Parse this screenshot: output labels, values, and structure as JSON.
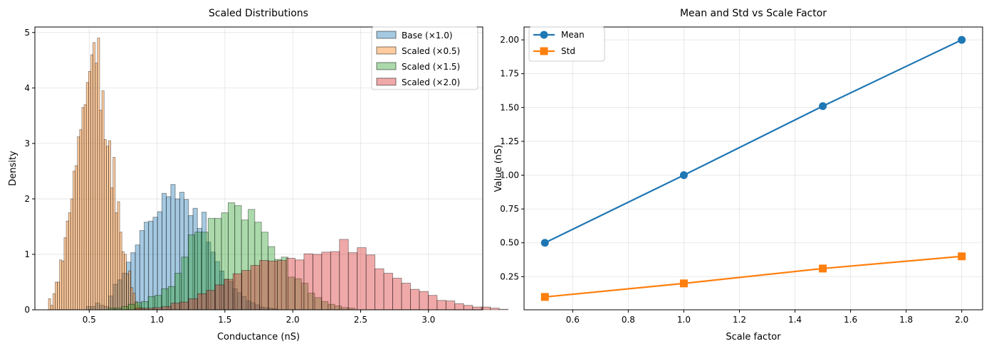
{
  "colors": {
    "c0": "#1f77b4",
    "c1": "#ff7f0e",
    "c2": "#2ca02c",
    "c3": "#d62728",
    "grid": "#b0b0b0",
    "axis": "#000000"
  },
  "chart_data": [
    {
      "type": "bar",
      "title": "Scaled Distributions",
      "xlabel": "Conductance (nS)",
      "ylabel": "Density",
      "xlim": [
        0.1,
        3.4
      ],
      "ylim": [
        0,
        5.1
      ],
      "xticks": [
        "0.5",
        "1.0",
        "1.5",
        "2.0",
        "2.5",
        "3.0"
      ],
      "yticks": [
        "0",
        "1",
        "2",
        "3",
        "4",
        "5"
      ],
      "grid": true,
      "legend_position": "upper right",
      "series": [
        {
          "name": "Base (×1.0)",
          "color_key": "c0",
          "bin_width": 0.0327,
          "x_start": 0.48,
          "values": [
            0.06,
            0.06,
            0.12,
            0.08,
            0.06,
            0.25,
            0.46,
            0.54,
            0.66,
            0.86,
            1.03,
            1.17,
            1.43,
            1.58,
            1.6,
            1.67,
            1.77,
            2.1,
            2.04,
            2.26,
            2.0,
            2.12,
            1.99,
            1.7,
            1.83,
            1.47,
            1.76,
            1.22,
            1.04,
            0.87,
            0.7,
            0.55,
            0.51,
            0.38,
            0.31,
            0.24,
            0.16,
            0.13,
            0.09,
            0.05,
            0.04,
            0.03,
            0.02
          ]
        },
        {
          "name": "Scaled (×0.5)",
          "color_key": "c1",
          "bin_width": 0.0164,
          "x_start": 0.2,
          "values": [
            0.2,
            0.08,
            0.29,
            0.5,
            0.5,
            0.9,
            0.88,
            1.3,
            1.6,
            1.75,
            2.0,
            2.5,
            2.6,
            3.12,
            3.25,
            3.65,
            3.7,
            4.1,
            4.3,
            4.6,
            4.82,
            4.45,
            4.9,
            3.6,
            3.95,
            3.07,
            2.95,
            3.05,
            2.2,
            2.75,
            1.75,
            1.95,
            1.4,
            1.05,
            1.0,
            0.65,
            0.7,
            0.4,
            0.3,
            0.15,
            0.08,
            0.04
          ]
        },
        {
          "name": "Scaled (×1.5)",
          "color_key": "c2",
          "bin_width": 0.0491,
          "x_start": 0.64,
          "values": [
            0.03,
            0.03,
            0.06,
            0.1,
            0.13,
            0.15,
            0.24,
            0.26,
            0.38,
            0.42,
            0.66,
            0.95,
            1.35,
            1.4,
            1.4,
            1.65,
            1.65,
            1.75,
            1.93,
            1.88,
            1.62,
            1.81,
            1.58,
            1.4,
            1.14,
            0.91,
            0.95,
            0.59,
            0.56,
            0.48,
            0.3,
            0.22,
            0.15,
            0.1,
            0.07,
            0.04,
            0.03
          ]
        },
        {
          "name": "Scaled (×2.0)",
          "color_key": "c3",
          "bin_width": 0.0654,
          "x_start": 0.84,
          "values": [
            0.03,
            0.03,
            0.04,
            0.06,
            0.12,
            0.14,
            0.2,
            0.29,
            0.35,
            0.45,
            0.55,
            0.65,
            0.71,
            0.8,
            0.89,
            0.88,
            0.89,
            0.93,
            0.9,
            1.01,
            1.0,
            1.04,
            1.05,
            1.27,
            1.03,
            1.12,
            0.99,
            0.74,
            0.66,
            0.57,
            0.48,
            0.37,
            0.33,
            0.26,
            0.17,
            0.16,
            0.11,
            0.08,
            0.05,
            0.05,
            0.03,
            0.01
          ]
        }
      ]
    },
    {
      "type": "line",
      "title": "Mean and Std vs Scale Factor",
      "xlabel": "Scale factor",
      "ylabel": "Value (nS)",
      "xlim": [
        0.425,
        2.075
      ],
      "ylim": [
        0.005,
        2.095
      ],
      "xticks": [
        "0.6",
        "0.8",
        "1.0",
        "1.2",
        "1.4",
        "1.6",
        "1.8",
        "2.0"
      ],
      "yticks": [
        "0.25",
        "0.50",
        "0.75",
        "1.00",
        "1.25",
        "1.50",
        "1.75",
        "2.00"
      ],
      "grid": true,
      "legend_position": "upper left",
      "x": [
        0.5,
        1.0,
        1.5,
        2.0
      ],
      "series": [
        {
          "name": "Mean",
          "color_key": "c0",
          "marker": "circle",
          "values": [
            0.5,
            1.0,
            1.51,
            2.0
          ]
        },
        {
          "name": "Std",
          "color_key": "c1",
          "marker": "square",
          "values": [
            0.1,
            0.2,
            0.31,
            0.4
          ]
        }
      ]
    }
  ]
}
